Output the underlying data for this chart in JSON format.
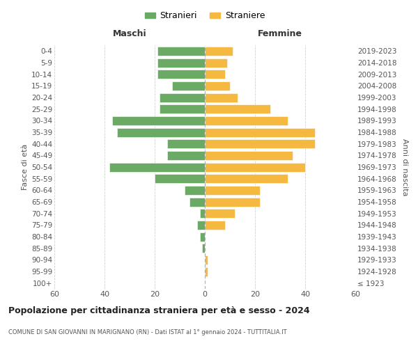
{
  "age_groups": [
    "100+",
    "95-99",
    "90-94",
    "85-89",
    "80-84",
    "75-79",
    "70-74",
    "65-69",
    "60-64",
    "55-59",
    "50-54",
    "45-49",
    "40-44",
    "35-39",
    "30-34",
    "25-29",
    "20-24",
    "15-19",
    "10-14",
    "5-9",
    "0-4"
  ],
  "birth_years": [
    "≤ 1923",
    "1924-1928",
    "1929-1933",
    "1934-1938",
    "1939-1943",
    "1944-1948",
    "1949-1953",
    "1954-1958",
    "1959-1963",
    "1964-1968",
    "1969-1973",
    "1974-1978",
    "1979-1983",
    "1984-1988",
    "1989-1993",
    "1994-1998",
    "1999-2003",
    "2004-2008",
    "2009-2013",
    "2014-2018",
    "2019-2023"
  ],
  "maschi": [
    0,
    0,
    0,
    1,
    2,
    3,
    2,
    6,
    8,
    20,
    38,
    15,
    15,
    35,
    37,
    18,
    18,
    13,
    19,
    19,
    19
  ],
  "femmine": [
    0,
    1,
    1,
    0,
    0,
    8,
    12,
    22,
    22,
    33,
    40,
    35,
    44,
    44,
    33,
    26,
    13,
    10,
    8,
    9,
    11
  ],
  "color_maschi": "#6aaa64",
  "color_femmine": "#f5b942",
  "title_main": "Popolazione per cittadinanza straniera per età e sesso - 2024",
  "title_sub": "COMUNE DI SAN GIOVANNI IN MARIGNANO (RN) - Dati ISTAT al 1° gennaio 2024 - TUTTITALIA.IT",
  "xlabel_left": "Maschi",
  "xlabel_right": "Femmine",
  "ylabel_left": "Fasce di età",
  "ylabel_right": "Anni di nascita",
  "legend_maschi": "Stranieri",
  "legend_femmine": "Straniere",
  "xlim": 60,
  "background_color": "#ffffff",
  "grid_color": "#d0d0d0"
}
